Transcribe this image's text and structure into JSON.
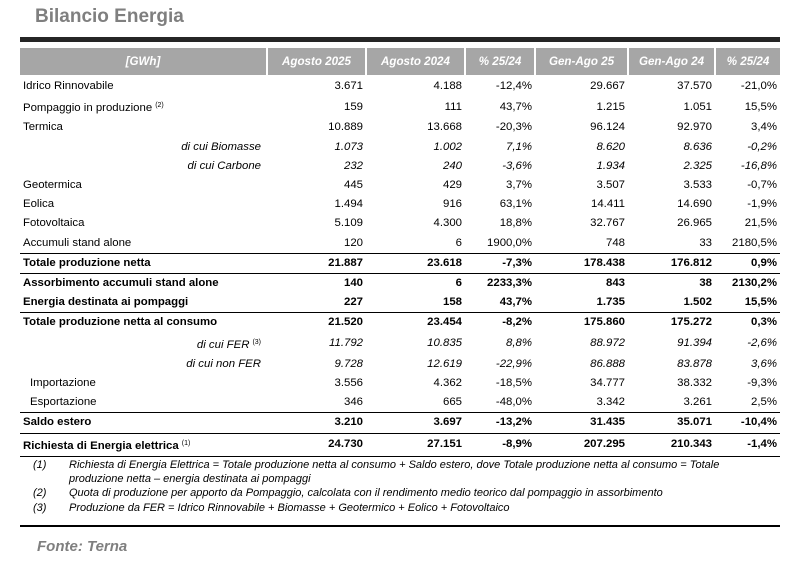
{
  "title": "Bilancio Energia",
  "table": {
    "headers": [
      "[GWh]",
      "Agosto 2025",
      "Agosto 2024",
      "% 25/24",
      "Gen-Ago 25",
      "Gen-Ago 24",
      "% 25/24"
    ],
    "rows": [
      {
        "label": "Idrico Rinnovabile",
        "fn": "",
        "style": "normal",
        "values": [
          "3.671",
          "4.188",
          "-12,4%",
          "29.667",
          "37.570",
          "-21,0%"
        ]
      },
      {
        "label": "Pompaggio in produzione",
        "fn": "(2)",
        "style": "normal",
        "values": [
          "159",
          "111",
          "43,7%",
          "1.215",
          "1.051",
          "15,5%"
        ]
      },
      {
        "label": "Termica",
        "fn": "",
        "style": "normal",
        "values": [
          "10.889",
          "13.668",
          "-20,3%",
          "96.124",
          "92.970",
          "3,4%"
        ]
      },
      {
        "label": "di cui Biomasse",
        "fn": "",
        "style": "sub",
        "values": [
          "1.073",
          "1.002",
          "7,1%",
          "8.620",
          "8.636",
          "-0,2%"
        ]
      },
      {
        "label": "di cui Carbone",
        "fn": "",
        "style": "sub",
        "values": [
          "232",
          "240",
          "-3,6%",
          "1.934",
          "2.325",
          "-16,8%"
        ]
      },
      {
        "label": "Geotermica",
        "fn": "",
        "style": "normal",
        "values": [
          "445",
          "429",
          "3,7%",
          "3.507",
          "3.533",
          "-0,7%"
        ]
      },
      {
        "label": "Eolica",
        "fn": "",
        "style": "normal",
        "values": [
          "1.494",
          "916",
          "63,1%",
          "14.411",
          "14.690",
          "-1,9%"
        ]
      },
      {
        "label": "Fotovoltaica",
        "fn": "",
        "style": "normal",
        "values": [
          "5.109",
          "4.300",
          "18,8%",
          "32.767",
          "26.965",
          "21,5%"
        ]
      },
      {
        "label": "Accumuli stand alone",
        "fn": "",
        "style": "normal",
        "values": [
          "120",
          "6",
          "1900,0%",
          "748",
          "33",
          "2180,5%"
        ]
      },
      {
        "label": "Totale produzione netta",
        "fn": "",
        "style": "bold-line",
        "values": [
          "21.887",
          "23.618",
          "-7,3%",
          "178.438",
          "176.812",
          "0,9%"
        ]
      },
      {
        "label": "Assorbimento accumuli stand alone",
        "fn": "",
        "style": "bold-line",
        "values": [
          "140",
          "6",
          "2233,3%",
          "843",
          "38",
          "2130,2%"
        ]
      },
      {
        "label": "Energia destinata ai pompaggi",
        "fn": "",
        "style": "bold",
        "values": [
          "227",
          "158",
          "43,7%",
          "1.735",
          "1.502",
          "15,5%"
        ]
      },
      {
        "label": "Totale produzione netta al consumo",
        "fn": "",
        "style": "bold-line",
        "values": [
          "21.520",
          "23.454",
          "-8,2%",
          "175.860",
          "175.272",
          "0,3%"
        ]
      },
      {
        "label": "di cui FER",
        "fn": "(3)",
        "style": "sub",
        "values": [
          "11.792",
          "10.835",
          "8,8%",
          "88.972",
          "91.394",
          "-2,6%"
        ]
      },
      {
        "label": "di cui non FER",
        "fn": "",
        "style": "sub",
        "values": [
          "9.728",
          "12.619",
          "-22,9%",
          "86.888",
          "83.878",
          "3,6%"
        ]
      },
      {
        "label": "Importazione",
        "fn": "",
        "style": "indent",
        "values": [
          "3.556",
          "4.362",
          "-18,5%",
          "34.777",
          "38.332",
          "-9,3%"
        ]
      },
      {
        "label": "Esportazione",
        "fn": "",
        "style": "indent",
        "values": [
          "346",
          "665",
          "-48,0%",
          "3.342",
          "3.261",
          "2,5%"
        ]
      },
      {
        "label": "Saldo estero",
        "fn": "",
        "style": "bold-line",
        "values": [
          "3.210",
          "3.697",
          "-13,2%",
          "31.435",
          "35.071",
          "-10,4%"
        ]
      },
      {
        "label": "Richiesta di Energia elettrica",
        "fn": "(1)",
        "style": "bold-line-last",
        "values": [
          "24.730",
          "27.151",
          "-8,9%",
          "207.295",
          "210.343",
          "-1,4%"
        ]
      }
    ]
  },
  "notes": [
    {
      "num": "(1)",
      "text": "Richiesta di Energia Elettrica = Totale produzione netta al consumo + Saldo estero, dove Totale produzione netta al consumo = Totale produzione netta – energia destinata ai pompaggi"
    },
    {
      "num": "(2)",
      "text": "Quota di produzione per apporto da Pompaggio, calcolata con il rendimento medio teorico dal pompaggio in assorbimento"
    },
    {
      "num": "(3)",
      "text": "Produzione da FER = Idrico Rinnovabile + Biomasse + Geotermico + Eolico + Fotovoltaico"
    }
  ],
  "source": "Fonte: Terna"
}
